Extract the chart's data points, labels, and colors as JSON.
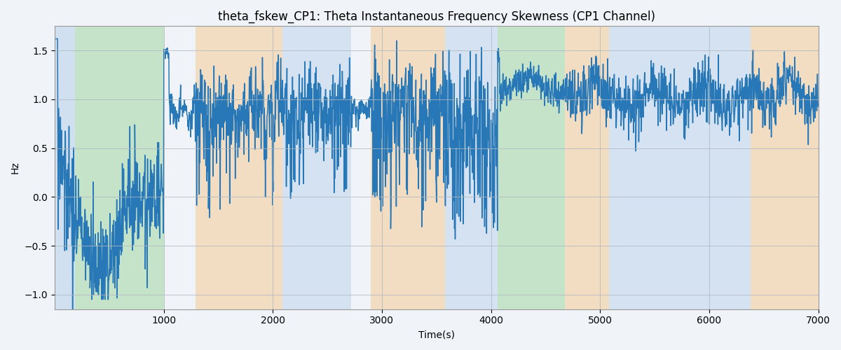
{
  "title": "theta_fskew_CP1: Theta Instantaneous Frequency Skewness (CP1 Channel)",
  "xlabel": "Time(s)",
  "ylabel": "Hz",
  "xlim": [
    0,
    7000
  ],
  "ylim": [
    -1.15,
    1.75
  ],
  "yticks": [
    -1.0,
    -0.5,
    0.0,
    0.5,
    1.0,
    1.5
  ],
  "xticks": [
    1000,
    2000,
    3000,
    4000,
    5000,
    6000,
    7000
  ],
  "background_bands": [
    {
      "xmin": 0,
      "xmax": 190,
      "color": "#aac8e8",
      "alpha": 0.45
    },
    {
      "xmin": 190,
      "xmax": 1000,
      "color": "#90d090",
      "alpha": 0.45
    },
    {
      "xmin": 1290,
      "xmax": 2090,
      "color": "#f5c890",
      "alpha": 0.5
    },
    {
      "xmin": 2090,
      "xmax": 2720,
      "color": "#aac8e8",
      "alpha": 0.4
    },
    {
      "xmin": 2900,
      "xmax": 3580,
      "color": "#f5c890",
      "alpha": 0.5
    },
    {
      "xmin": 3580,
      "xmax": 4060,
      "color": "#aac8e8",
      "alpha": 0.4
    },
    {
      "xmin": 4060,
      "xmax": 4680,
      "color": "#90d090",
      "alpha": 0.45
    },
    {
      "xmin": 4680,
      "xmax": 5080,
      "color": "#f5c890",
      "alpha": 0.5
    },
    {
      "xmin": 5080,
      "xmax": 6380,
      "color": "#aac8e8",
      "alpha": 0.4
    },
    {
      "xmin": 6380,
      "xmax": 7000,
      "color": "#f5c890",
      "alpha": 0.5
    }
  ],
  "line_color": "#2878b8",
  "line_width": 1.1,
  "grid_color": "#b0b8c0",
  "grid_alpha": 0.8,
  "figsize": [
    12,
    5
  ],
  "dpi": 100,
  "seed": 17,
  "title_fontsize": 12
}
